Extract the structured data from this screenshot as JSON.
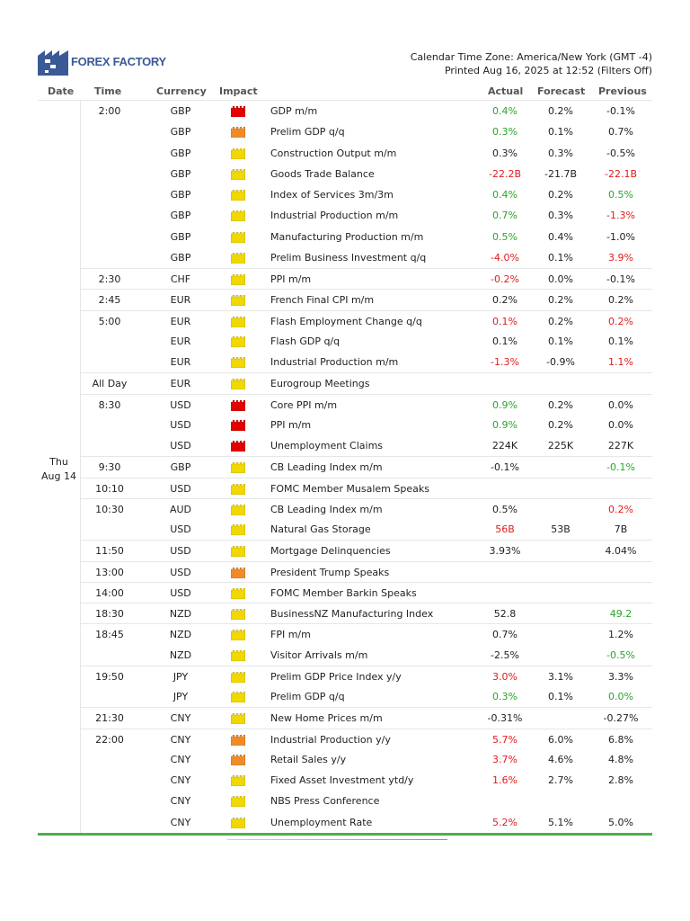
{
  "header": {
    "logo": "FOREX FACTORY",
    "timezone": "Calendar Time Zone: America/New York (GMT -4)",
    "printed": "Printed Aug 16, 2025 at 12:52 (Filters Off)"
  },
  "columns": {
    "date": "Date",
    "time": "Time",
    "currency": "Currency",
    "impact": "Impact",
    "actual": "Actual",
    "forecast": "Forecast",
    "previous": "Previous"
  },
  "date": {
    "day": "Thu",
    "date": "Aug 14"
  },
  "colors": {
    "high": "#e30000",
    "medium": "#f08c28",
    "low": "#f0d800",
    "better": "#2aa52a",
    "worse": "#e31b1b"
  },
  "rows": [
    {
      "time": "2:00",
      "currency": "GBP",
      "impact": "high",
      "event": "GDP m/m",
      "actual": "0.4%",
      "actual_c": "green",
      "forecast": "0.2%",
      "previous": "-0.1%",
      "previous_c": ""
    },
    {
      "time": "",
      "currency": "GBP",
      "impact": "medium",
      "event": "Prelim GDP q/q",
      "actual": "0.3%",
      "actual_c": "green",
      "forecast": "0.1%",
      "previous": "0.7%",
      "previous_c": ""
    },
    {
      "time": "",
      "currency": "GBP",
      "impact": "low",
      "event": "Construction Output m/m",
      "actual": "0.3%",
      "actual_c": "",
      "forecast": "0.3%",
      "previous": "-0.5%",
      "previous_c": ""
    },
    {
      "time": "",
      "currency": "GBP",
      "impact": "low",
      "event": "Goods Trade Balance",
      "actual": "-22.2B",
      "actual_c": "red",
      "forecast": "-21.7B",
      "previous": "-22.1B",
      "previous_c": "red"
    },
    {
      "time": "",
      "currency": "GBP",
      "impact": "low",
      "event": "Index of Services 3m/3m",
      "actual": "0.4%",
      "actual_c": "green",
      "forecast": "0.2%",
      "previous": "0.5%",
      "previous_c": "green"
    },
    {
      "time": "",
      "currency": "GBP",
      "impact": "low",
      "event": "Industrial Production m/m",
      "actual": "0.7%",
      "actual_c": "green",
      "forecast": "0.3%",
      "previous": "-1.3%",
      "previous_c": "red"
    },
    {
      "time": "",
      "currency": "GBP",
      "impact": "low",
      "event": "Manufacturing Production m/m",
      "actual": "0.5%",
      "actual_c": "green",
      "forecast": "0.4%",
      "previous": "-1.0%",
      "previous_c": ""
    },
    {
      "time": "",
      "currency": "GBP",
      "impact": "low",
      "event": "Prelim Business Investment q/q",
      "actual": "-4.0%",
      "actual_c": "red",
      "forecast": "0.1%",
      "previous": "3.9%",
      "previous_c": "red"
    },
    {
      "time": "2:30",
      "currency": "CHF",
      "impact": "low",
      "event": "PPI m/m",
      "actual": "-0.2%",
      "actual_c": "red",
      "forecast": "0.0%",
      "previous": "-0.1%",
      "previous_c": ""
    },
    {
      "time": "2:45",
      "currency": "EUR",
      "impact": "low",
      "event": "French Final CPI m/m",
      "actual": "0.2%",
      "actual_c": "",
      "forecast": "0.2%",
      "previous": "0.2%",
      "previous_c": ""
    },
    {
      "time": "5:00",
      "currency": "EUR",
      "impact": "low",
      "event": "Flash Employment Change q/q",
      "actual": "0.1%",
      "actual_c": "red",
      "forecast": "0.2%",
      "previous": "0.2%",
      "previous_c": "red"
    },
    {
      "time": "",
      "currency": "EUR",
      "impact": "low",
      "event": "Flash GDP q/q",
      "actual": "0.1%",
      "actual_c": "",
      "forecast": "0.1%",
      "previous": "0.1%",
      "previous_c": ""
    },
    {
      "time": "",
      "currency": "EUR",
      "impact": "low",
      "event": "Industrial Production m/m",
      "actual": "-1.3%",
      "actual_c": "red",
      "forecast": "-0.9%",
      "previous": "1.1%",
      "previous_c": "red"
    },
    {
      "time": "All Day",
      "currency": "EUR",
      "impact": "low",
      "event": "Eurogroup Meetings",
      "actual": "",
      "actual_c": "",
      "forecast": "",
      "previous": "",
      "previous_c": ""
    },
    {
      "time": "8:30",
      "currency": "USD",
      "impact": "high",
      "event": "Core PPI m/m",
      "actual": "0.9%",
      "actual_c": "green",
      "forecast": "0.2%",
      "previous": "0.0%",
      "previous_c": ""
    },
    {
      "time": "",
      "currency": "USD",
      "impact": "high",
      "event": "PPI m/m",
      "actual": "0.9%",
      "actual_c": "green",
      "forecast": "0.2%",
      "previous": "0.0%",
      "previous_c": ""
    },
    {
      "time": "",
      "currency": "USD",
      "impact": "high",
      "event": "Unemployment Claims",
      "actual": "224K",
      "actual_c": "",
      "forecast": "225K",
      "previous": "227K",
      "previous_c": ""
    },
    {
      "time": "9:30",
      "currency": "GBP",
      "impact": "low",
      "event": "CB Leading Index m/m",
      "actual": "-0.1%",
      "actual_c": "",
      "forecast": "",
      "previous": "-0.1%",
      "previous_c": "green"
    },
    {
      "time": "10:10",
      "currency": "USD",
      "impact": "low",
      "event": "FOMC Member Musalem Speaks",
      "actual": "",
      "actual_c": "",
      "forecast": "",
      "previous": "",
      "previous_c": ""
    },
    {
      "time": "10:30",
      "currency": "AUD",
      "impact": "low",
      "event": "CB Leading Index m/m",
      "actual": "0.5%",
      "actual_c": "",
      "forecast": "",
      "previous": "0.2%",
      "previous_c": "red"
    },
    {
      "time": "",
      "currency": "USD",
      "impact": "low",
      "event": "Natural Gas Storage",
      "actual": "56B",
      "actual_c": "red",
      "forecast": "53B",
      "previous": "7B",
      "previous_c": ""
    },
    {
      "time": "11:50",
      "currency": "USD",
      "impact": "low",
      "event": "Mortgage Delinquencies",
      "actual": "3.93%",
      "actual_c": "",
      "forecast": "",
      "previous": "4.04%",
      "previous_c": ""
    },
    {
      "time": "13:00",
      "currency": "USD",
      "impact": "medium",
      "event": "President Trump Speaks",
      "actual": "",
      "actual_c": "",
      "forecast": "",
      "previous": "",
      "previous_c": ""
    },
    {
      "time": "14:00",
      "currency": "USD",
      "impact": "low",
      "event": "FOMC Member Barkin Speaks",
      "actual": "",
      "actual_c": "",
      "forecast": "",
      "previous": "",
      "previous_c": ""
    },
    {
      "time": "18:30",
      "currency": "NZD",
      "impact": "low",
      "event": "BusinessNZ Manufacturing Index",
      "actual": "52.8",
      "actual_c": "",
      "forecast": "",
      "previous": "49.2",
      "previous_c": "green"
    },
    {
      "time": "18:45",
      "currency": "NZD",
      "impact": "low",
      "event": "FPI m/m",
      "actual": "0.7%",
      "actual_c": "",
      "forecast": "",
      "previous": "1.2%",
      "previous_c": ""
    },
    {
      "time": "",
      "currency": "NZD",
      "impact": "low",
      "event": "Visitor Arrivals m/m",
      "actual": "-2.5%",
      "actual_c": "",
      "forecast": "",
      "previous": "-0.5%",
      "previous_c": "green"
    },
    {
      "time": "19:50",
      "currency": "JPY",
      "impact": "low",
      "event": "Prelim GDP Price Index y/y",
      "actual": "3.0%",
      "actual_c": "red",
      "forecast": "3.1%",
      "previous": "3.3%",
      "previous_c": ""
    },
    {
      "time": "",
      "currency": "JPY",
      "impact": "low",
      "event": "Prelim GDP q/q",
      "actual": "0.3%",
      "actual_c": "green",
      "forecast": "0.1%",
      "previous": "0.0%",
      "previous_c": "green"
    },
    {
      "time": "21:30",
      "currency": "CNY",
      "impact": "low",
      "event": "New Home Prices m/m",
      "actual": "-0.31%",
      "actual_c": "",
      "forecast": "",
      "previous": "-0.27%",
      "previous_c": ""
    },
    {
      "time": "22:00",
      "currency": "CNY",
      "impact": "medium",
      "event": "Industrial Production y/y",
      "actual": "5.7%",
      "actual_c": "red",
      "forecast": "6.0%",
      "previous": "6.8%",
      "previous_c": ""
    },
    {
      "time": "",
      "currency": "CNY",
      "impact": "medium",
      "event": "Retail Sales y/y",
      "actual": "3.7%",
      "actual_c": "red",
      "forecast": "4.6%",
      "previous": "4.8%",
      "previous_c": ""
    },
    {
      "time": "",
      "currency": "CNY",
      "impact": "low",
      "event": "Fixed Asset Investment ytd/y",
      "actual": "1.6%",
      "actual_c": "red",
      "forecast": "2.7%",
      "previous": "2.8%",
      "previous_c": ""
    },
    {
      "time": "",
      "currency": "CNY",
      "impact": "low",
      "event": "NBS Press Conference",
      "actual": "",
      "actual_c": "",
      "forecast": "",
      "previous": "",
      "previous_c": ""
    },
    {
      "time": "",
      "currency": "CNY",
      "impact": "low",
      "event": "Unemployment Rate",
      "actual": "5.2%",
      "actual_c": "red",
      "forecast": "5.1%",
      "previous": "5.0%",
      "previous_c": ""
    }
  ]
}
